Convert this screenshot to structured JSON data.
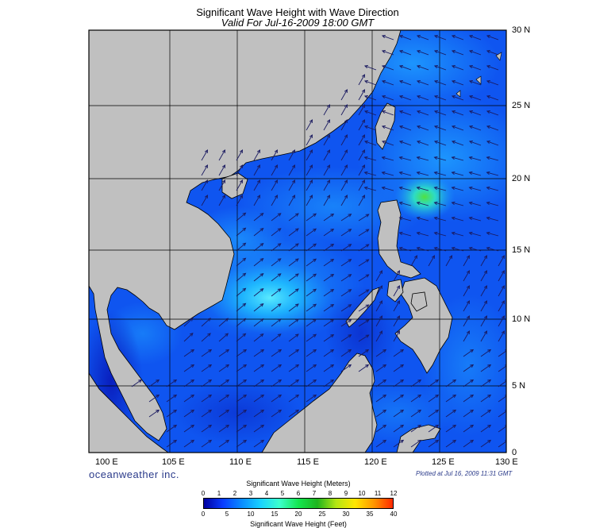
{
  "title": "Significant Wave Height with Wave Direction",
  "subtitle": "Valid For Jul-16-2009 18:00 GMT",
  "longitude_labels": [
    "100 E",
    "105 E",
    "110 E",
    "115 E",
    "120 E",
    "125 E",
    "130 E"
  ],
  "latitude_labels": [
    "30 N",
    "25 N",
    "20 N",
    "15 N",
    "10 N",
    "5 N",
    "0"
  ],
  "brand": "oceanweather inc.",
  "plotted": "Plotted at Jul 16, 2009 11:31 GMT",
  "colorbar": {
    "meters_title": "Significant Wave Height (Meters)",
    "meters_ticks": [
      "0",
      "1",
      "2",
      "3",
      "4",
      "5",
      "6",
      "7",
      "8",
      "9",
      "10",
      "11",
      "12"
    ],
    "feet_title": "Significant Wave Height (Feet)",
    "feet_ticks": [
      "0",
      "5",
      "10",
      "15",
      "20",
      "25",
      "30",
      "35",
      "40"
    ],
    "colors": [
      "#0000a0",
      "#0a3cff",
      "#0a8cff",
      "#19d2ff",
      "#3cffcc",
      "#14e650",
      "#1eb41e",
      "#b4e614",
      "#ffe600",
      "#ff9600",
      "#ff2800"
    ]
  },
  "colors": {
    "land": "#c0c0c0",
    "sea_base": "#0f55f0",
    "arrow": "#1a1a60"
  }
}
